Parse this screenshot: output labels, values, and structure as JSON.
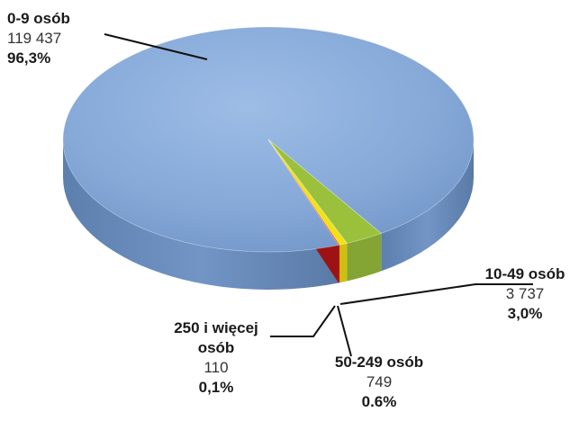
{
  "chart_data": {
    "type": "pie",
    "title": "",
    "slices": [
      {
        "label": "0-9 osób",
        "value": 119437,
        "value_text": "119 437",
        "percent_text": "96,3%",
        "color": "#8db0dd"
      },
      {
        "label": "10-49 osób",
        "value": 3737,
        "value_text": "3 737",
        "percent_text": "3,0%",
        "color": "#9bc13c"
      },
      {
        "label": "50-249 osób",
        "value": 749,
        "value_text": "749",
        "percent_text": "0.6%",
        "color": "#f2e20f"
      },
      {
        "label": "250 i więcej osób",
        "label_line1": "250 i więcej",
        "label_line2": "osób",
        "value": 110,
        "value_text": "110",
        "percent_text": "0,1%",
        "color": "#e01b1b"
      }
    ],
    "style": "3d-pie",
    "legend": "none"
  }
}
